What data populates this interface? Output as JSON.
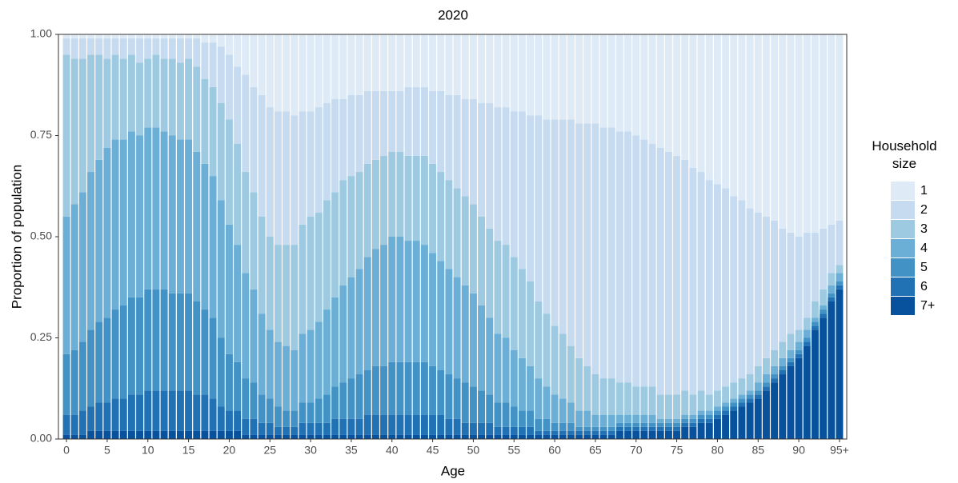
{
  "chart_data": {
    "type": "stacked_bar",
    "title": "2020",
    "x_label": "Age",
    "y_label": "Proportion of population",
    "legend_title": "Household size",
    "legend_position": "right",
    "categories": [
      "0",
      null,
      null,
      null,
      null,
      "5",
      null,
      null,
      null,
      null,
      "10",
      null,
      null,
      null,
      null,
      "15",
      null,
      null,
      null,
      null,
      "20",
      null,
      null,
      null,
      null,
      "25",
      null,
      null,
      null,
      null,
      "30",
      null,
      null,
      null,
      null,
      "35",
      null,
      null,
      null,
      null,
      "40",
      null,
      null,
      null,
      null,
      "45",
      null,
      null,
      null,
      null,
      "50",
      null,
      null,
      null,
      null,
      "55",
      null,
      null,
      null,
      null,
      "60",
      null,
      null,
      null,
      null,
      "65",
      null,
      null,
      null,
      null,
      "70",
      null,
      null,
      null,
      null,
      "75",
      null,
      null,
      null,
      null,
      "80",
      null,
      null,
      null,
      null,
      "85",
      null,
      null,
      null,
      null,
      "90",
      null,
      null,
      null,
      null,
      "95+"
    ],
    "ylim": [
      0,
      1
    ],
    "yticks": [
      {
        "value": 0,
        "label": "0.00"
      },
      {
        "value": 0.25,
        "label": "0.25"
      },
      {
        "value": 0.5,
        "label": "0.50"
      },
      {
        "value": 0.75,
        "label": "0.75"
      },
      {
        "value": 1,
        "label": "1.00"
      }
    ],
    "series": [
      {
        "name": "1",
        "color": "#deebf7",
        "values": [
          0.01,
          0.01,
          0.01,
          0.01,
          0.01,
          0.01,
          0.01,
          0.01,
          0.01,
          0.01,
          0.01,
          0.01,
          0.01,
          0.01,
          0.01,
          0.01,
          0.01,
          0.02,
          0.02,
          0.03,
          0.05,
          0.08,
          0.1,
          0.13,
          0.15,
          0.18,
          0.19,
          0.19,
          0.2,
          0.19,
          0.19,
          0.18,
          0.17,
          0.16,
          0.16,
          0.15,
          0.15,
          0.14,
          0.14,
          0.14,
          0.14,
          0.14,
          0.13,
          0.13,
          0.13,
          0.14,
          0.14,
          0.15,
          0.15,
          0.16,
          0.16,
          0.17,
          0.17,
          0.18,
          0.18,
          0.19,
          0.19,
          0.2,
          0.2,
          0.21,
          0.21,
          0.21,
          0.21,
          0.22,
          0.22,
          0.22,
          0.23,
          0.23,
          0.24,
          0.24,
          0.25,
          0.26,
          0.27,
          0.28,
          0.29,
          0.3,
          0.31,
          0.33,
          0.34,
          0.36,
          0.37,
          0.38,
          0.4,
          0.41,
          0.43,
          0.44,
          0.45,
          0.46,
          0.48,
          0.49,
          0.5,
          0.49,
          0.49,
          0.48,
          0.47,
          0.46
        ]
      },
      {
        "name": "2",
        "color": "#c6dbef",
        "values": [
          0.04,
          0.05,
          0.05,
          0.04,
          0.04,
          0.05,
          0.04,
          0.05,
          0.04,
          0.06,
          0.05,
          0.04,
          0.05,
          0.05,
          0.06,
          0.05,
          0.07,
          0.09,
          0.11,
          0.14,
          0.16,
          0.19,
          0.24,
          0.26,
          0.3,
          0.32,
          0.33,
          0.33,
          0.32,
          0.28,
          0.26,
          0.26,
          0.24,
          0.23,
          0.2,
          0.2,
          0.19,
          0.18,
          0.17,
          0.16,
          0.15,
          0.15,
          0.17,
          0.17,
          0.17,
          0.18,
          0.2,
          0.21,
          0.23,
          0.24,
          0.26,
          0.28,
          0.31,
          0.33,
          0.34,
          0.36,
          0.39,
          0.41,
          0.46,
          0.48,
          0.51,
          0.53,
          0.56,
          0.58,
          0.6,
          0.62,
          0.62,
          0.62,
          0.62,
          0.62,
          0.62,
          0.61,
          0.6,
          0.61,
          0.6,
          0.59,
          0.57,
          0.56,
          0.54,
          0.53,
          0.51,
          0.49,
          0.46,
          0.44,
          0.41,
          0.38,
          0.35,
          0.32,
          0.28,
          0.25,
          0.23,
          0.21,
          0.17,
          0.15,
          0.12,
          0.11
        ]
      },
      {
        "name": "3",
        "color": "#9ecae1",
        "values": [
          0.4,
          0.36,
          0.33,
          0.29,
          0.26,
          0.22,
          0.21,
          0.2,
          0.19,
          0.18,
          0.17,
          0.18,
          0.18,
          0.19,
          0.19,
          0.2,
          0.21,
          0.21,
          0.22,
          0.24,
          0.26,
          0.25,
          0.25,
          0.24,
          0.24,
          0.23,
          0.24,
          0.25,
          0.26,
          0.27,
          0.28,
          0.27,
          0.27,
          0.26,
          0.26,
          0.25,
          0.24,
          0.23,
          0.22,
          0.22,
          0.21,
          0.21,
          0.21,
          0.21,
          0.22,
          0.22,
          0.22,
          0.22,
          0.22,
          0.22,
          0.22,
          0.22,
          0.22,
          0.23,
          0.23,
          0.23,
          0.22,
          0.21,
          0.19,
          0.18,
          0.17,
          0.16,
          0.14,
          0.13,
          0.11,
          0.1,
          0.09,
          0.09,
          0.08,
          0.08,
          0.07,
          0.07,
          0.07,
          0.06,
          0.06,
          0.06,
          0.06,
          0.05,
          0.05,
          0.04,
          0.04,
          0.04,
          0.04,
          0.04,
          0.04,
          0.04,
          0.04,
          0.04,
          0.04,
          0.04,
          0.03,
          0.03,
          0.04,
          0.04,
          0.03,
          0.02
        ]
      },
      {
        "name": "4",
        "color": "#6baed6",
        "values": [
          0.34,
          0.36,
          0.37,
          0.39,
          0.4,
          0.42,
          0.42,
          0.41,
          0.41,
          0.4,
          0.4,
          0.4,
          0.39,
          0.39,
          0.38,
          0.38,
          0.37,
          0.36,
          0.35,
          0.34,
          0.32,
          0.29,
          0.26,
          0.23,
          0.2,
          0.17,
          0.16,
          0.16,
          0.15,
          0.17,
          0.18,
          0.19,
          0.21,
          0.22,
          0.24,
          0.25,
          0.26,
          0.28,
          0.29,
          0.3,
          0.31,
          0.31,
          0.3,
          0.3,
          0.29,
          0.28,
          0.27,
          0.26,
          0.25,
          0.24,
          0.23,
          0.21,
          0.19,
          0.17,
          0.16,
          0.14,
          0.13,
          0.11,
          0.1,
          0.08,
          0.07,
          0.06,
          0.05,
          0.04,
          0.04,
          0.03,
          0.03,
          0.03,
          0.02,
          0.02,
          0.02,
          0.02,
          0.02,
          0.01,
          0.01,
          0.01,
          0.01,
          0.01,
          0.01,
          0.01,
          0.01,
          0.01,
          0.01,
          0.01,
          0.01,
          0.02,
          0.02,
          0.02,
          0.02,
          0.02,
          0.02,
          0.02,
          0.01,
          0.01,
          0.02,
          0.02
        ]
      },
      {
        "name": "5",
        "color": "#4292c6",
        "values": [
          0.15,
          0.16,
          0.17,
          0.19,
          0.2,
          0.21,
          0.22,
          0.23,
          0.24,
          0.24,
          0.25,
          0.25,
          0.25,
          0.24,
          0.24,
          0.24,
          0.23,
          0.21,
          0.2,
          0.17,
          0.14,
          0.12,
          0.1,
          0.09,
          0.07,
          0.06,
          0.05,
          0.04,
          0.04,
          0.05,
          0.05,
          0.06,
          0.07,
          0.08,
          0.09,
          0.1,
          0.11,
          0.11,
          0.12,
          0.12,
          0.13,
          0.13,
          0.13,
          0.13,
          0.13,
          0.12,
          0.11,
          0.11,
          0.1,
          0.1,
          0.09,
          0.08,
          0.07,
          0.06,
          0.06,
          0.05,
          0.04,
          0.04,
          0.03,
          0.03,
          0.02,
          0.02,
          0.02,
          0.01,
          0.01,
          0.01,
          0.01,
          0.01,
          0.01,
          0.01,
          0.01,
          0.01,
          0.01,
          0.01,
          0.01,
          0.01,
          0.01,
          0.01,
          0.01,
          0.01,
          0.01,
          0.01,
          0.01,
          0.01,
          0.01,
          0.01,
          0.01,
          0.01,
          0.01,
          0.01,
          0.01,
          0.01,
          0.01,
          0.01,
          0.01,
          0.01
        ]
      },
      {
        "name": "6",
        "color": "#2171b5",
        "values": [
          0.05,
          0.05,
          0.06,
          0.06,
          0.07,
          0.07,
          0.08,
          0.08,
          0.09,
          0.09,
          0.1,
          0.1,
          0.1,
          0.1,
          0.1,
          0.1,
          0.09,
          0.09,
          0.08,
          0.06,
          0.05,
          0.05,
          0.04,
          0.04,
          0.03,
          0.03,
          0.02,
          0.02,
          0.02,
          0.03,
          0.03,
          0.03,
          0.03,
          0.04,
          0.04,
          0.04,
          0.04,
          0.05,
          0.05,
          0.05,
          0.05,
          0.05,
          0.05,
          0.05,
          0.05,
          0.05,
          0.05,
          0.04,
          0.04,
          0.03,
          0.03,
          0.03,
          0.03,
          0.02,
          0.02,
          0.02,
          0.02,
          0.02,
          0.01,
          0.01,
          0.01,
          0.01,
          0.01,
          0.01,
          0.01,
          0.01,
          0.01,
          0.01,
          0.01,
          0.01,
          0.01,
          0.01,
          0.01,
          0.01,
          0.01,
          0.01,
          0.01,
          0.01,
          0.01,
          0.01,
          0.01,
          0.01,
          0.01,
          0.01,
          0.01,
          0.01,
          0.01,
          0.01,
          0.01,
          0.01,
          0.01,
          0.01,
          0.01,
          0.01,
          0.01,
          0.01
        ]
      },
      {
        "name": "7+",
        "color": "#08519c",
        "values": [
          0.01,
          0.01,
          0.01,
          0.02,
          0.02,
          0.02,
          0.02,
          0.02,
          0.02,
          0.02,
          0.02,
          0.02,
          0.02,
          0.02,
          0.02,
          0.02,
          0.02,
          0.02,
          0.02,
          0.02,
          0.02,
          0.02,
          0.01,
          0.01,
          0.01,
          0.01,
          0.01,
          0.01,
          0.01,
          0.01,
          0.01,
          0.01,
          0.01,
          0.01,
          0.01,
          0.01,
          0.01,
          0.01,
          0.01,
          0.01,
          0.01,
          0.01,
          0.01,
          0.01,
          0.01,
          0.01,
          0.01,
          0.01,
          0.01,
          0.01,
          0.01,
          0.01,
          0.01,
          0.01,
          0.01,
          0.01,
          0.01,
          0.01,
          0.01,
          0.01,
          0.01,
          0.01,
          0.01,
          0.01,
          0.01,
          0.01,
          0.01,
          0.01,
          0.02,
          0.02,
          0.02,
          0.02,
          0.02,
          0.02,
          0.02,
          0.02,
          0.03,
          0.03,
          0.04,
          0.04,
          0.05,
          0.06,
          0.07,
          0.08,
          0.09,
          0.1,
          0.12,
          0.14,
          0.16,
          0.18,
          0.2,
          0.23,
          0.27,
          0.3,
          0.34,
          0.37
        ]
      }
    ]
  }
}
